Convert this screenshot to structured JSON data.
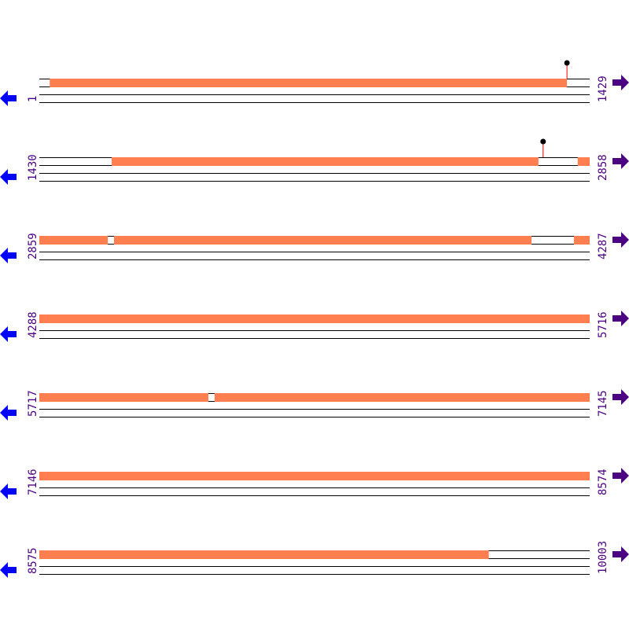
{
  "sequence": {
    "length": 10003,
    "bases_per_row": 1429,
    "rows": [
      {
        "start_label": "1",
        "end_label": "1429",
        "start": 1,
        "end": 1429
      },
      {
        "start_label": "1430",
        "end_label": "2858",
        "start": 1430,
        "end": 2858
      },
      {
        "start_label": "2859",
        "end_label": "4287",
        "start": 2859,
        "end": 4287
      },
      {
        "start_label": "4288",
        "end_label": "5716",
        "start": 4288,
        "end": 5716
      },
      {
        "start_label": "5717",
        "end_label": "7145",
        "start": 5717,
        "end": 7145
      },
      {
        "start_label": "7146",
        "end_label": "8574",
        "start": 7146,
        "end": 8574
      },
      {
        "start_label": "8575",
        "end_label": "10003",
        "start": 8575,
        "end": 10003
      }
    ]
  },
  "features": [
    {
      "start": 28,
      "end": 1371
    },
    {
      "start": 1618,
      "end": 2726
    },
    {
      "start": 2828,
      "end": 3037
    },
    {
      "start": 3053,
      "end": 4137
    },
    {
      "start": 4247,
      "end": 6156
    },
    {
      "start": 6172,
      "end": 9742
    }
  ],
  "markers": [
    {
      "position": 1371
    },
    {
      "position": 2738
    }
  ],
  "colors": {
    "feature": "#ff7f50",
    "label": "#4b0082",
    "reverse_arrow": "#0000ff",
    "forward_arrow": "#4b0082",
    "marker_stem": "#ff0000",
    "marker_head": "#000000",
    "strand_line": "#000000"
  },
  "icons": {
    "forward": "right-arrow-icon",
    "reverse": "left-arrow-icon"
  }
}
